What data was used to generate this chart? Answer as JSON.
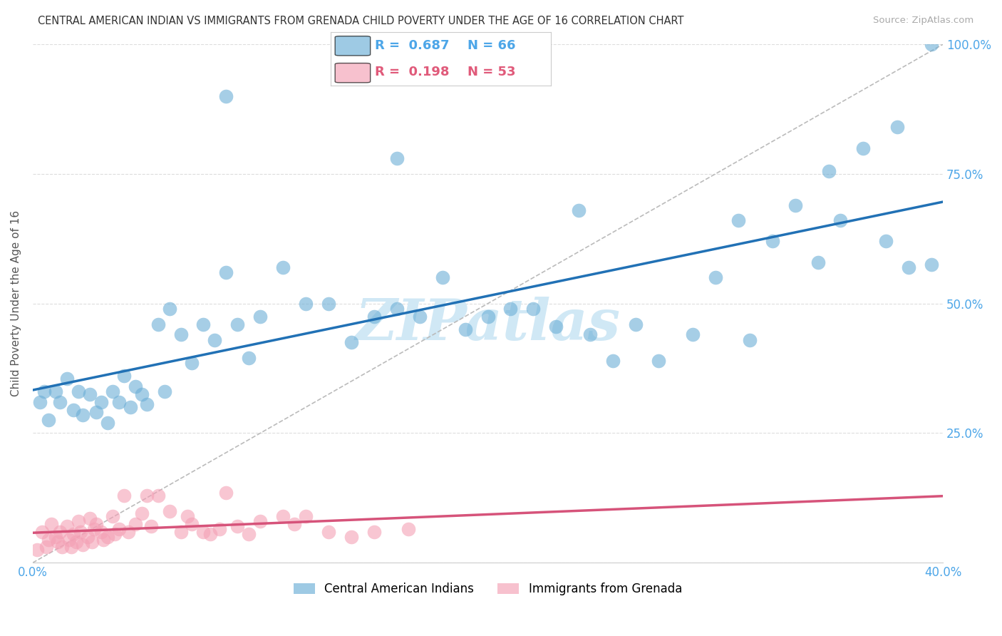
{
  "title": "CENTRAL AMERICAN INDIAN VS IMMIGRANTS FROM GRENADA CHILD POVERTY UNDER THE AGE OF 16 CORRELATION CHART",
  "source": "Source: ZipAtlas.com",
  "ylabel": "Child Poverty Under the Age of 16",
  "xlim": [
    0.0,
    0.4
  ],
  "ylim": [
    0.0,
    1.0
  ],
  "xticks": [
    0.0,
    0.1,
    0.2,
    0.3,
    0.4
  ],
  "xticklabels": [
    "0.0%",
    "",
    "",
    "",
    "40.0%"
  ],
  "yticks": [
    0.0,
    0.25,
    0.5,
    0.75,
    1.0
  ],
  "yticklabels": [
    "",
    "25.0%",
    "50.0%",
    "75.0%",
    "100.0%"
  ],
  "legend1_label": "Central American Indians",
  "legend2_label": "Immigrants from Grenada",
  "R1": "0.687",
  "N1": "66",
  "R2": "0.198",
  "N2": "53",
  "blue_color": "#6baed6",
  "pink_color": "#f4a0b5",
  "line1_color": "#2171b5",
  "line2_color": "#d6537a",
  "dashed_color": "#bbbbbb",
  "watermark": "ZIPatlas",
  "watermark_color": "#d0e8f5",
  "background_color": "#ffffff",
  "grid_color": "#dddddd",
  "tick_color": "#4da6e8",
  "title_color": "#333333",
  "blue_scatter_x": [
    0.003,
    0.005,
    0.007,
    0.01,
    0.012,
    0.015,
    0.018,
    0.02,
    0.022,
    0.025,
    0.028,
    0.03,
    0.033,
    0.035,
    0.038,
    0.04,
    0.043,
    0.045,
    0.048,
    0.05,
    0.055,
    0.058,
    0.06,
    0.065,
    0.07,
    0.075,
    0.08,
    0.085,
    0.09,
    0.095,
    0.1,
    0.11,
    0.12,
    0.13,
    0.14,
    0.15,
    0.16,
    0.17,
    0.18,
    0.19,
    0.2,
    0.21,
    0.22,
    0.23,
    0.245,
    0.255,
    0.265,
    0.275,
    0.29,
    0.3,
    0.315,
    0.325,
    0.335,
    0.345,
    0.355,
    0.365,
    0.375,
    0.385,
    0.395,
    0.085,
    0.16,
    0.24,
    0.31,
    0.35,
    0.38,
    0.395
  ],
  "blue_scatter_y": [
    0.31,
    0.33,
    0.275,
    0.33,
    0.31,
    0.355,
    0.295,
    0.33,
    0.285,
    0.325,
    0.29,
    0.31,
    0.27,
    0.33,
    0.31,
    0.36,
    0.3,
    0.34,
    0.325,
    0.305,
    0.46,
    0.33,
    0.49,
    0.44,
    0.385,
    0.46,
    0.43,
    0.56,
    0.46,
    0.395,
    0.475,
    0.57,
    0.5,
    0.5,
    0.425,
    0.475,
    0.49,
    0.475,
    0.55,
    0.45,
    0.475,
    0.49,
    0.49,
    0.455,
    0.44,
    0.39,
    0.46,
    0.39,
    0.44,
    0.55,
    0.43,
    0.62,
    0.69,
    0.58,
    0.66,
    0.8,
    0.62,
    0.57,
    0.575,
    0.9,
    0.78,
    0.68,
    0.66,
    0.755,
    0.84,
    1.0
  ],
  "pink_scatter_x": [
    0.002,
    0.004,
    0.006,
    0.007,
    0.008,
    0.01,
    0.011,
    0.012,
    0.013,
    0.015,
    0.016,
    0.017,
    0.018,
    0.019,
    0.02,
    0.021,
    0.022,
    0.024,
    0.025,
    0.026,
    0.027,
    0.028,
    0.03,
    0.031,
    0.033,
    0.035,
    0.036,
    0.038,
    0.04,
    0.042,
    0.045,
    0.048,
    0.05,
    0.052,
    0.055,
    0.06,
    0.065,
    0.068,
    0.07,
    0.075,
    0.078,
    0.082,
    0.085,
    0.09,
    0.095,
    0.1,
    0.11,
    0.115,
    0.12,
    0.13,
    0.14,
    0.15,
    0.165
  ],
  "pink_scatter_y": [
    0.025,
    0.06,
    0.03,
    0.045,
    0.075,
    0.05,
    0.04,
    0.06,
    0.03,
    0.07,
    0.045,
    0.03,
    0.055,
    0.04,
    0.08,
    0.06,
    0.035,
    0.05,
    0.085,
    0.04,
    0.065,
    0.075,
    0.06,
    0.045,
    0.05,
    0.09,
    0.055,
    0.065,
    0.13,
    0.06,
    0.075,
    0.095,
    0.13,
    0.07,
    0.13,
    0.1,
    0.06,
    0.09,
    0.075,
    0.06,
    0.055,
    0.065,
    0.135,
    0.07,
    0.055,
    0.08,
    0.09,
    0.075,
    0.09,
    0.06,
    0.05,
    0.06,
    0.065
  ]
}
